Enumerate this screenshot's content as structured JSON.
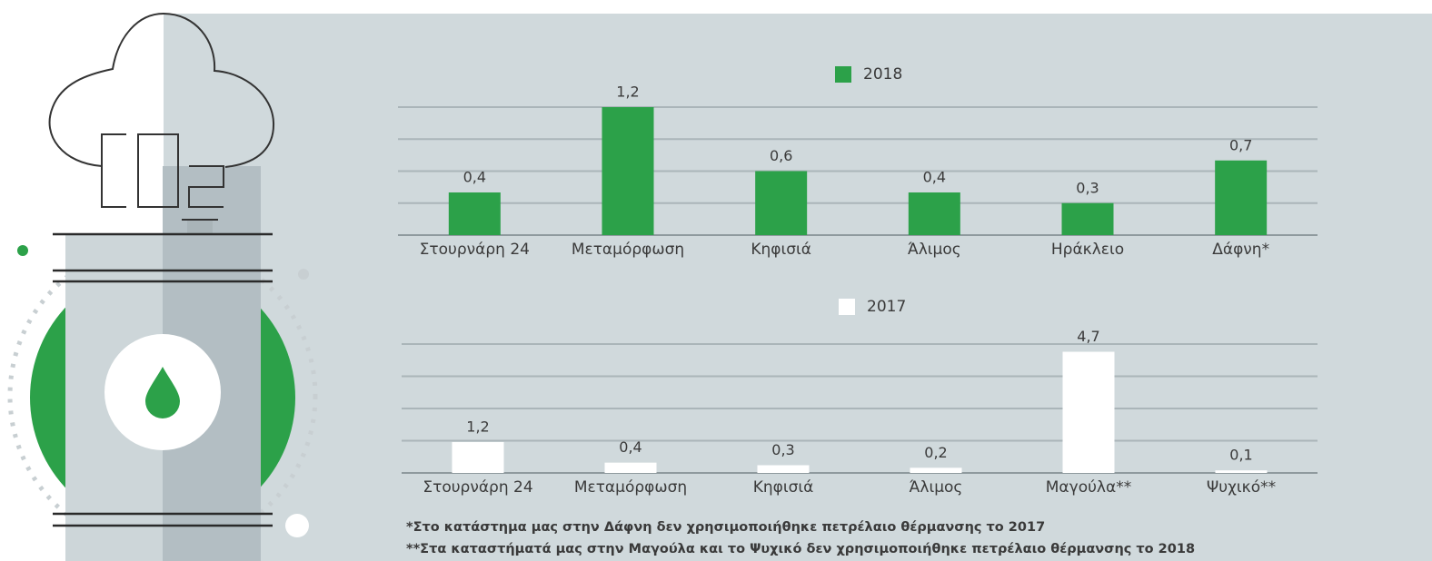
{
  "chart_data": [
    {
      "type": "bar",
      "categories": [
        "Στουρνάρη 24",
        "Μεταμόρφωση",
        "Κηφισιά",
        "Άλιμος",
        "Ηράκλειο",
        "Δάφνη*"
      ],
      "series": [
        {
          "name": "2018",
          "color": "#2ca149",
          "values": [
            0.4,
            1.2,
            0.6,
            0.4,
            0.3,
            0.7
          ],
          "value_labels": [
            "0,4",
            "1,2",
            "0,6",
            "0,4",
            "0,3",
            "0,7"
          ]
        }
      ],
      "ylim": [
        0,
        1.2
      ],
      "yticks": [
        0,
        0.3,
        0.6,
        0.9,
        1.2
      ],
      "grid": true,
      "legend": "top"
    },
    {
      "type": "bar",
      "categories": [
        "Στουρνάρη 24",
        "Μεταμόρφωση",
        "Κηφισιά",
        "Άλιμος",
        "Μαγούλα**",
        "Ψυχικό**"
      ],
      "series": [
        {
          "name": "2017",
          "color": "#ffffff",
          "values": [
            1.2,
            0.4,
            0.3,
            0.2,
            4.7,
            0.1
          ],
          "value_labels": [
            "1,2",
            "0,4",
            "0,3",
            "0,2",
            "4,7",
            "0,1"
          ]
        }
      ],
      "ylim": [
        0,
        5
      ],
      "yticks": [
        0,
        1.25,
        2.5,
        3.75,
        5
      ],
      "grid": true,
      "legend": "top"
    }
  ],
  "footnotes": [
    "*Στο κατάστημα μας στην Δάφνη δεν χρησιμοποιήθηκε πετρέλαιο θέρμανσης το 2017",
    "**Στα καταστήματά μας στην Μαγούλα και το Ψυχικό δεν χρησιμοποιήθηκε πετρέλαιο θέρμανσης το 2018"
  ]
}
